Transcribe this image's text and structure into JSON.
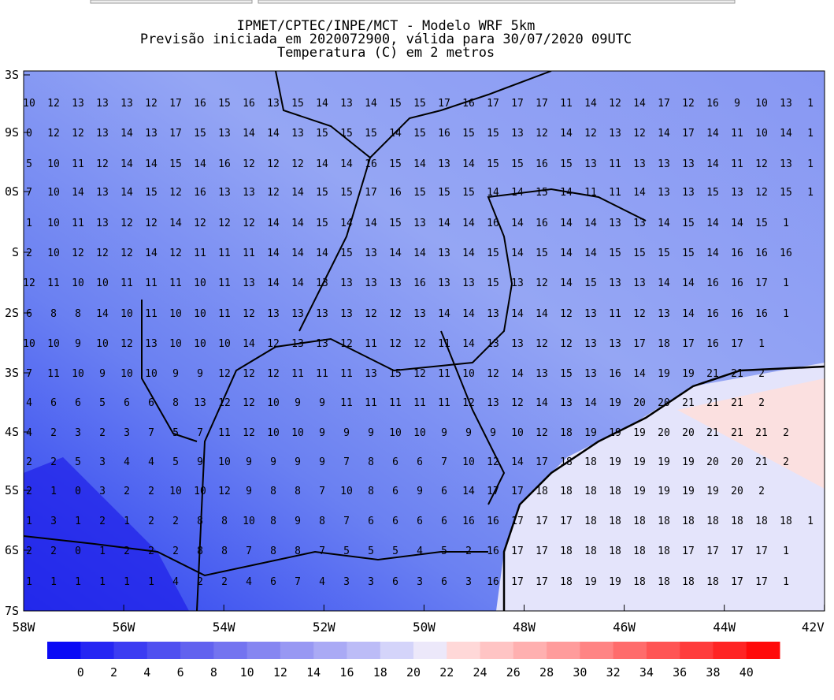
{
  "header": {
    "lines": [
      "IPMET/CPTEC/INPE/MCT - Modelo WRF 5km",
      "Previsão iniciada em 2020072900, válida para 30/07/2020 09UTC",
      "Temperatura (C) em 2 metros"
    ]
  },
  "map": {
    "lat_labels": [
      "3S",
      "9S",
      "0S",
      "S",
      "2S",
      "3S",
      "4S",
      "5S",
      "6S",
      "7S"
    ],
    "lon_labels": [
      "58W",
      "56W",
      "54W",
      "52W",
      "50W",
      "48W",
      "46W",
      "44W",
      "42V"
    ],
    "grid_values": [
      [
        10,
        12,
        13,
        13,
        13,
        12,
        17,
        16,
        15,
        16,
        13,
        15,
        14,
        13,
        14,
        15,
        15,
        17,
        16,
        17,
        17,
        17,
        11,
        14,
        12,
        14,
        17,
        12,
        16,
        9,
        10,
        13,
        1
      ],
      [
        0,
        12,
        12,
        13,
        14,
        13,
        17,
        15,
        13,
        14,
        14,
        13,
        15,
        15,
        15,
        14,
        15,
        16,
        15,
        15,
        13,
        12,
        14,
        12,
        13,
        12,
        14,
        17,
        14,
        11,
        10,
        14,
        1
      ],
      [
        5,
        10,
        11,
        12,
        14,
        14,
        15,
        14,
        16,
        12,
        12,
        12,
        14,
        14,
        16,
        15,
        14,
        13,
        14,
        15,
        15,
        16,
        15,
        13,
        11,
        13,
        13,
        13,
        14,
        11,
        12,
        13,
        1
      ],
      [
        7,
        10,
        14,
        13,
        14,
        15,
        12,
        16,
        13,
        13,
        12,
        14,
        15,
        15,
        17,
        16,
        15,
        15,
        15,
        14,
        14,
        15,
        14,
        11,
        11,
        14,
        13,
        13,
        15,
        13,
        12,
        15,
        1
      ],
      [
        1,
        10,
        11,
        13,
        12,
        12,
        14,
        12,
        12,
        12,
        14,
        14,
        15,
        14,
        14,
        15,
        13,
        14,
        14,
        16,
        14,
        16,
        14,
        14,
        13,
        13,
        14,
        15,
        14,
        14,
        15,
        1
      ],
      [
        2,
        10,
        12,
        12,
        12,
        14,
        12,
        11,
        11,
        11,
        14,
        14,
        14,
        15,
        13,
        14,
        14,
        13,
        14,
        15,
        14,
        15,
        14,
        14,
        15,
        15,
        15,
        15,
        14,
        16,
        16,
        16
      ],
      [
        12,
        11,
        10,
        10,
        11,
        11,
        11,
        10,
        11,
        13,
        14,
        14,
        13,
        13,
        13,
        13,
        16,
        13,
        13,
        15,
        13,
        12,
        14,
        15,
        13,
        13,
        14,
        14,
        16,
        16,
        17,
        1
      ],
      [
        6,
        8,
        8,
        14,
        10,
        11,
        10,
        10,
        11,
        12,
        13,
        13,
        13,
        13,
        12,
        12,
        13,
        14,
        14,
        13,
        14,
        14,
        12,
        13,
        11,
        12,
        13,
        14,
        16,
        16,
        16,
        1
      ],
      [
        10,
        10,
        9,
        10,
        12,
        13,
        10,
        10,
        10,
        14,
        12,
        13,
        13,
        12,
        11,
        12,
        12,
        11,
        14,
        13,
        13,
        12,
        12,
        13,
        13,
        17,
        18,
        17,
        16,
        17,
        1
      ],
      [
        7,
        11,
        10,
        9,
        10,
        10,
        9,
        9,
        12,
        12,
        12,
        11,
        11,
        11,
        13,
        15,
        12,
        11,
        10,
        12,
        14,
        13,
        15,
        13,
        16,
        14,
        19,
        19,
        21,
        21,
        2
      ],
      [
        4,
        6,
        6,
        5,
        6,
        6,
        8,
        13,
        12,
        12,
        10,
        9,
        9,
        11,
        11,
        11,
        11,
        11,
        12,
        13,
        12,
        14,
        13,
        14,
        19,
        20,
        20,
        21,
        21,
        21,
        2
      ],
      [
        4,
        2,
        3,
        2,
        3,
        7,
        5,
        7,
        11,
        12,
        10,
        10,
        9,
        9,
        9,
        10,
        10,
        9,
        9,
        9,
        10,
        12,
        18,
        19,
        19,
        19,
        20,
        20,
        21,
        21,
        21,
        2
      ],
      [
        2,
        2,
        5,
        3,
        4,
        4,
        5,
        9,
        10,
        9,
        9,
        9,
        9,
        7,
        8,
        6,
        6,
        7,
        10,
        12,
        14,
        17,
        18,
        18,
        19,
        19,
        19,
        19,
        20,
        20,
        21,
        2
      ],
      [
        2,
        1,
        0,
        3,
        2,
        2,
        10,
        10,
        12,
        9,
        8,
        8,
        7,
        10,
        8,
        6,
        9,
        6,
        14,
        17,
        17,
        18,
        18,
        18,
        18,
        19,
        19,
        19,
        19,
        20,
        2
      ],
      [
        1,
        3,
        1,
        2,
        1,
        2,
        2,
        8,
        8,
        10,
        8,
        9,
        8,
        7,
        6,
        6,
        6,
        6,
        16,
        16,
        17,
        17,
        17,
        18,
        18,
        18,
        18,
        18,
        18,
        18,
        18,
        18,
        1
      ],
      [
        2,
        2,
        0,
        1,
        2,
        2,
        2,
        8,
        8,
        7,
        8,
        8,
        7,
        5,
        5,
        5,
        4,
        5,
        2,
        16,
        17,
        17,
        18,
        18,
        18,
        18,
        18,
        17,
        17,
        17,
        17,
        1
      ],
      [
        1,
        1,
        1,
        1,
        1,
        1,
        4,
        2,
        2,
        4,
        6,
        7,
        4,
        3,
        3,
        6,
        3,
        6,
        3,
        16,
        17,
        17,
        18,
        19,
        19,
        18,
        18,
        18,
        18,
        17,
        17,
        1
      ]
    ]
  },
  "colorbar": {
    "labels": [
      0,
      2,
      4,
      6,
      8,
      10,
      12,
      14,
      16,
      18,
      20,
      22,
      24,
      26,
      28,
      30,
      32,
      34,
      36,
      38,
      40
    ],
    "colors": [
      "#0a0af5",
      "#2626f3",
      "#3c3cf2",
      "#5050f0",
      "#6262ef",
      "#7474f0",
      "#8686f1",
      "#9898f3",
      "#aaaaf5",
      "#bcbcf7",
      "#d4d4fa",
      "#ece8fa",
      "#ffd8d8",
      "#ffc4c4",
      "#ffb0b0",
      "#ff9c9c",
      "#ff8484",
      "#ff6c6c",
      "#ff5454",
      "#ff3c3c",
      "#ff2424",
      "#ff0a0a"
    ]
  }
}
